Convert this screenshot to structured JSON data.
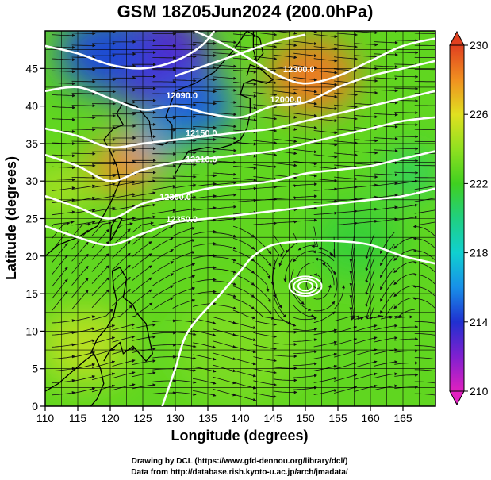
{
  "title": "GSM 18Z05Jun2024 (200.0hPa)",
  "credits": {
    "line1": "Drawing by DCL (https://www.gfd-dennou.org/library/dcl/)",
    "line2": "Data from http://database.rish.kyoto-u.ac.jp/arch/jmadata/"
  },
  "chart_data": {
    "type": "heatmap",
    "xlabel": "Longitude (degrees)",
    "ylabel": "Latitude  (degrees)",
    "xlim": [
      110,
      170
    ],
    "ylim": [
      0,
      50
    ],
    "x_ticks": [
      110,
      115,
      120,
      125,
      130,
      135,
      140,
      145,
      150,
      155,
      160,
      165
    ],
    "y_ticks": [
      0,
      5,
      10,
      15,
      20,
      25,
      30,
      35,
      40,
      45
    ],
    "grid": true,
    "colorbar": {
      "min": 210,
      "max": 230,
      "ticks": [
        210,
        214,
        218,
        222,
        226,
        230
      ],
      "colors": [
        "#e020c0",
        "#8020d0",
        "#2030d0",
        "#1890e8",
        "#10d0d0",
        "#20d080",
        "#40d020",
        "#90e020",
        "#e0e020",
        "#f09020",
        "#e04020"
      ]
    },
    "color_field": [
      {
        "lon": 127,
        "lat": 46,
        "value": 213,
        "radius_deg": 9
      },
      {
        "lon": 119,
        "lat": 47,
        "value": 214.5,
        "radius_deg": 7
      },
      {
        "lon": 133,
        "lat": 40,
        "value": 215,
        "radius_deg": 6
      },
      {
        "lon": 126,
        "lat": 35,
        "value": 216,
        "radius_deg": 4
      },
      {
        "lon": 151,
        "lat": 44,
        "value": 228.5,
        "radius_deg": 7
      },
      {
        "lon": 122,
        "lat": 32,
        "value": 228,
        "radius_deg": 5
      },
      {
        "lon": 166,
        "lat": 31,
        "value": 220.5,
        "radius_deg": 4
      },
      {
        "lon": 112,
        "lat": 29,
        "value": 224.5,
        "radius_deg": 5
      },
      {
        "lon": 140,
        "lat": 8,
        "value": 223.5,
        "radius_deg": 10
      },
      {
        "lon": 116,
        "lat": 8,
        "value": 225,
        "radius_deg": 7
      },
      {
        "lon": 158,
        "lat": 22,
        "value": 221.5,
        "radius_deg": 7
      }
    ],
    "contours": [
      {
        "label": "12090.0",
        "label_at": [
          131,
          41
        ],
        "points": [
          [
            110,
            42
          ],
          [
            115,
            42.5
          ],
          [
            120,
            41
          ],
          [
            125,
            39.5
          ],
          [
            130,
            40
          ],
          [
            135,
            39
          ],
          [
            140,
            38.5
          ],
          [
            145,
            40
          ],
          [
            150,
            40.5
          ],
          [
            155,
            42.5
          ],
          [
            160,
            44
          ],
          [
            165,
            45
          ],
          [
            170,
            46
          ]
        ]
      },
      {
        "label": "12150.0",
        "label_at": [
          134,
          36
        ],
        "points": [
          [
            110,
            37
          ],
          [
            115,
            36
          ],
          [
            120,
            34.5
          ],
          [
            125,
            35
          ],
          [
            130,
            35.5
          ],
          [
            135,
            36
          ],
          [
            140,
            36.5
          ],
          [
            145,
            37
          ],
          [
            150,
            38
          ],
          [
            155,
            39
          ],
          [
            160,
            40
          ],
          [
            165,
            41
          ],
          [
            170,
            42
          ]
        ]
      },
      {
        "label": "12210.0",
        "label_at": [
          134,
          32.5
        ],
        "points": [
          [
            110,
            33.5
          ],
          [
            115,
            32
          ],
          [
            120,
            30
          ],
          [
            125,
            31.5
          ],
          [
            130,
            32.5
          ],
          [
            135,
            33
          ],
          [
            140,
            33.5
          ],
          [
            145,
            34
          ],
          [
            150,
            35
          ],
          [
            155,
            36
          ],
          [
            160,
            37
          ],
          [
            165,
            38
          ],
          [
            170,
            38.5
          ]
        ]
      },
      {
        "label": "12300.0",
        "label_at": [
          130,
          27.5
        ],
        "points": [
          [
            110,
            28
          ],
          [
            115,
            26.5
          ],
          [
            120,
            25
          ],
          [
            125,
            27
          ],
          [
            130,
            28
          ],
          [
            135,
            29
          ],
          [
            140,
            29.5
          ],
          [
            145,
            30
          ],
          [
            150,
            31
          ],
          [
            155,
            31.5
          ],
          [
            160,
            32
          ],
          [
            165,
            33
          ],
          [
            170,
            34
          ]
        ]
      },
      {
        "label": "12350.0",
        "label_at": [
          131,
          24.5
        ],
        "points": [
          [
            110,
            24
          ],
          [
            115,
            22.5
          ],
          [
            120,
            21.5
          ],
          [
            125,
            23
          ],
          [
            130,
            24.5
          ],
          [
            135,
            25
          ],
          [
            140,
            25.5
          ],
          [
            145,
            26
          ],
          [
            150,
            26.5
          ],
          [
            155,
            27
          ],
          [
            160,
            27.5
          ],
          [
            165,
            28
          ],
          [
            170,
            29
          ]
        ]
      },
      {
        "label": "",
        "label_at": null,
        "points": [
          [
            128,
            0
          ],
          [
            130,
            5
          ],
          [
            132,
            10
          ],
          [
            137,
            15
          ],
          [
            140,
            18
          ],
          [
            142,
            20
          ],
          [
            145,
            21.5
          ],
          [
            150,
            22
          ],
          [
            155,
            22
          ],
          [
            160,
            21.5
          ],
          [
            165,
            20
          ],
          [
            170,
            19
          ]
        ]
      },
      {
        "label": "12300.0",
        "label_at": [
          149,
          44.5
        ],
        "points": [
          [
            130,
            44
          ],
          [
            135,
            45.5
          ],
          [
            140,
            47
          ],
          [
            145,
            48.5
          ],
          [
            150,
            49.5
          ]
        ]
      },
      {
        "label": "12000.0",
        "label_at": [
          147,
          40.5
        ],
        "points": [
          [
            133,
            50
          ],
          [
            138,
            48
          ],
          [
            142,
            46
          ],
          [
            146,
            44
          ],
          [
            150,
            43
          ],
          [
            155,
            44
          ],
          [
            160,
            46
          ],
          [
            165,
            48
          ],
          [
            170,
            49
          ]
        ]
      },
      {
        "label": "",
        "label_at": null,
        "points": [
          [
            110,
            48
          ],
          [
            115,
            47
          ],
          [
            120,
            45.5
          ],
          [
            125,
            45
          ],
          [
            130,
            46
          ],
          [
            134,
            48
          ],
          [
            136,
            50
          ]
        ]
      }
    ],
    "closed_contour": {
      "center": [
        150,
        16
      ],
      "rx_deg": 2.5,
      "ry_deg": 1.5
    }
  }
}
